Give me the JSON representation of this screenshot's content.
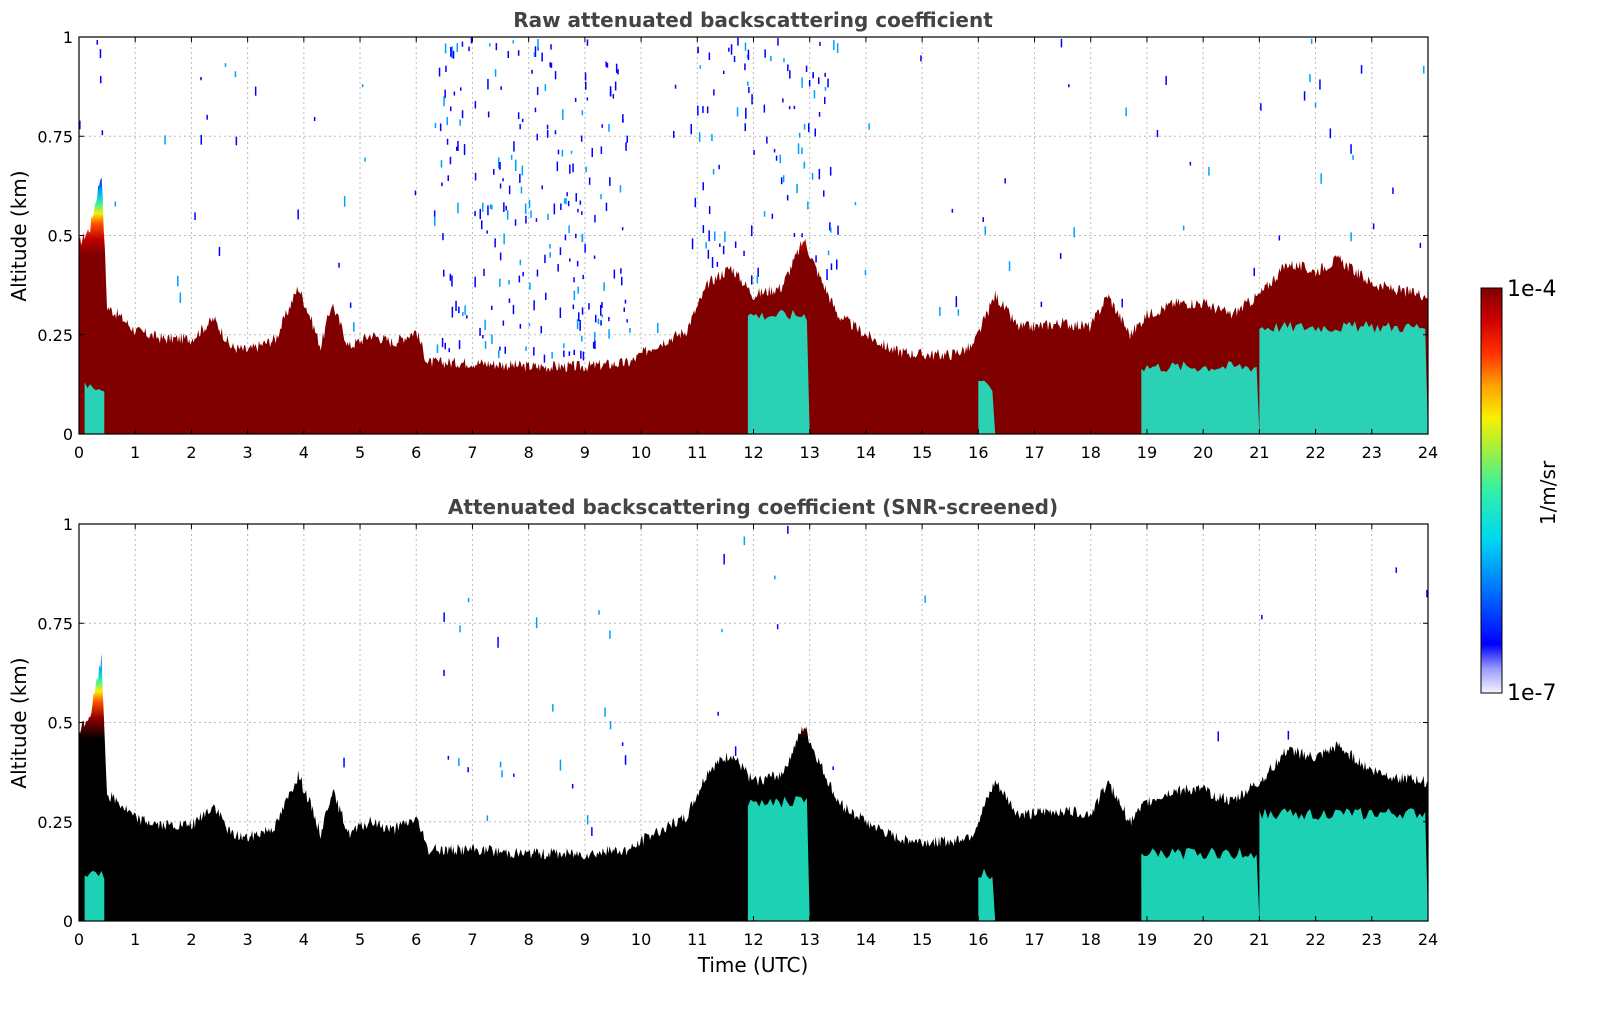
{
  "chart_data": [
    {
      "type": "heatmap",
      "title": "Raw attenuated backscattering coefficient",
      "xlabel": "",
      "ylabel": "Altitude (km)",
      "xlim": [
        0,
        24
      ],
      "ylim": [
        0,
        1
      ],
      "xticks": [
        "0",
        "1",
        "2",
        "3",
        "4",
        "5",
        "6",
        "7",
        "8",
        "9",
        "10",
        "11",
        "12",
        "13",
        "14",
        "15",
        "16",
        "17",
        "18",
        "19",
        "20",
        "21",
        "22",
        "23",
        "24"
      ],
      "yticks": [
        "0",
        "0.25",
        "0.5",
        "0.75",
        "1"
      ],
      "grid": true,
      "layer_top_km": {
        "time_utc": [
          0,
          0.2,
          0.4,
          0.5,
          0.7,
          1,
          1.5,
          2,
          2.4,
          2.7,
          3,
          3.5,
          3.9,
          4.1,
          4.3,
          4.5,
          4.8,
          5.2,
          5.6,
          6,
          6.2,
          6.5,
          7,
          8,
          9,
          9.8,
          10.2,
          10.8,
          11.2,
          11.6,
          12,
          12.5,
          12.9,
          13.1,
          13.5,
          14,
          14.5,
          15,
          15.5,
          15.9,
          16.3,
          16.7,
          17,
          17.5,
          18,
          18.3,
          18.7,
          19,
          19.5,
          20,
          20.5,
          21,
          21.5,
          22,
          22.4,
          23,
          23.5,
          24
        ],
        "altitude_km": [
          0.48,
          0.52,
          0.66,
          0.32,
          0.3,
          0.26,
          0.24,
          0.24,
          0.29,
          0.22,
          0.21,
          0.24,
          0.37,
          0.3,
          0.22,
          0.33,
          0.22,
          0.25,
          0.23,
          0.26,
          0.18,
          0.18,
          0.18,
          0.17,
          0.17,
          0.18,
          0.22,
          0.26,
          0.38,
          0.42,
          0.35,
          0.37,
          0.49,
          0.42,
          0.3,
          0.25,
          0.21,
          0.2,
          0.2,
          0.22,
          0.35,
          0.27,
          0.27,
          0.28,
          0.27,
          0.35,
          0.25,
          0.3,
          0.33,
          0.33,
          0.3,
          0.35,
          0.43,
          0.41,
          0.44,
          0.38,
          0.36,
          0.35
        ]
      },
      "colorbar": {
        "label": "1/m/sr",
        "min": "1e-7",
        "max": "1e-4"
      }
    },
    {
      "type": "heatmap",
      "title": "Attenuated backscattering coefficient (SNR-screened)",
      "xlabel": "Time (UTC)",
      "ylabel": "Altitude (km)",
      "xlim": [
        0,
        24
      ],
      "ylim": [
        0,
        1
      ],
      "xticks": [
        "0",
        "1",
        "2",
        "3",
        "4",
        "5",
        "6",
        "7",
        "8",
        "9",
        "10",
        "11",
        "12",
        "13",
        "14",
        "15",
        "16",
        "17",
        "18",
        "19",
        "20",
        "21",
        "22",
        "23",
        "24"
      ],
      "yticks": [
        "0",
        "0.25",
        "0.5",
        "0.75",
        "1"
      ],
      "grid": true,
      "screened_out_color": "#000000"
    }
  ],
  "colorbar": {
    "label": "1/m/sr",
    "top": "1e-4",
    "bottom": "1e-7"
  },
  "colors": {
    "colormap": [
      "#f0f0ff",
      "#c8c8ff",
      "#8888ff",
      "#0000ff",
      "#0050ff",
      "#00a0ff",
      "#00e0e8",
      "#40f0a0",
      "#a0f040",
      "#f0f000",
      "#ffb000",
      "#ff5000",
      "#e00000",
      "#7a0000"
    ],
    "grid": "#bbbbbb",
    "title": "#444444"
  }
}
